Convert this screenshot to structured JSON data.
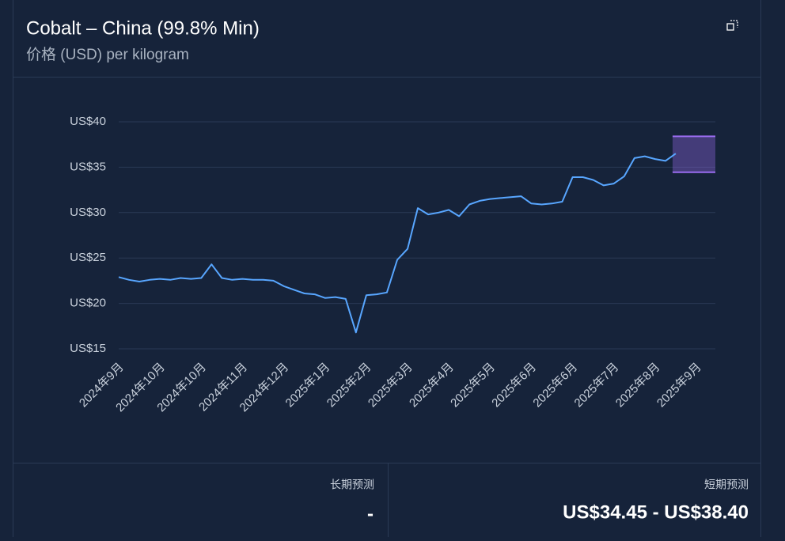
{
  "header": {
    "title": "Cobalt – China (99.8% Min)",
    "subtitle": "价格 (USD) per kilogram"
  },
  "chart_data": {
    "type": "line",
    "categories": [
      "2024年9月",
      null,
      null,
      null,
      "2024年10月",
      null,
      null,
      null,
      "2024年10月",
      null,
      null,
      null,
      "2024年11月",
      null,
      null,
      null,
      "2024年12月",
      null,
      null,
      null,
      "2025年1月",
      null,
      null,
      null,
      "2025年2月",
      null,
      null,
      null,
      "2025年3月",
      null,
      null,
      null,
      "2025年4月",
      null,
      null,
      null,
      "2025年5月",
      null,
      null,
      null,
      "2025年6月",
      null,
      null,
      null,
      "2025年6月",
      null,
      null,
      null,
      "2025年7月",
      null,
      null,
      null,
      "2025年8月",
      null,
      null,
      null,
      "2025年9月"
    ],
    "series": [
      {
        "color": "#58a6ff",
        "values": [
          22.9,
          22.6,
          22.4,
          22.6,
          22.7,
          22.6,
          22.8,
          22.7,
          22.8,
          24.3,
          22.8,
          22.6,
          22.7,
          22.6,
          22.6,
          22.5,
          21.9,
          21.5,
          21.1,
          21.0,
          20.6,
          20.7,
          20.5,
          16.8,
          20.9,
          21.0,
          21.2,
          24.8,
          26.0,
          30.5,
          29.8,
          30.0,
          30.3,
          29.6,
          30.9,
          31.3,
          31.5,
          31.6,
          31.7,
          31.8,
          31.0,
          30.9,
          31.0,
          31.2,
          33.9,
          33.9,
          33.6,
          33.0,
          33.2,
          34.0,
          36.0,
          36.2,
          35.9,
          35.7,
          36.5,
          null,
          null
        ]
      }
    ],
    "forecast_band": [
      34.45,
      38.4
    ],
    "forecast_color": "#9a6cf0",
    "ylim": [
      15,
      40
    ],
    "yticks": [
      {
        "value": 15,
        "label": "US$15"
      },
      {
        "value": 20,
        "label": "US$20"
      },
      {
        "value": 25,
        "label": "US$25"
      },
      {
        "value": 30,
        "label": "US$30"
      },
      {
        "value": 35,
        "label": "US$35"
      },
      {
        "value": 40,
        "label": "US$40"
      }
    ],
    "grid": true
  },
  "footer": {
    "long_term_label": "长期预测",
    "long_term_value": "-",
    "short_term_label": "短期预测",
    "short_term_value": "US$34.45 - US$38.40"
  }
}
